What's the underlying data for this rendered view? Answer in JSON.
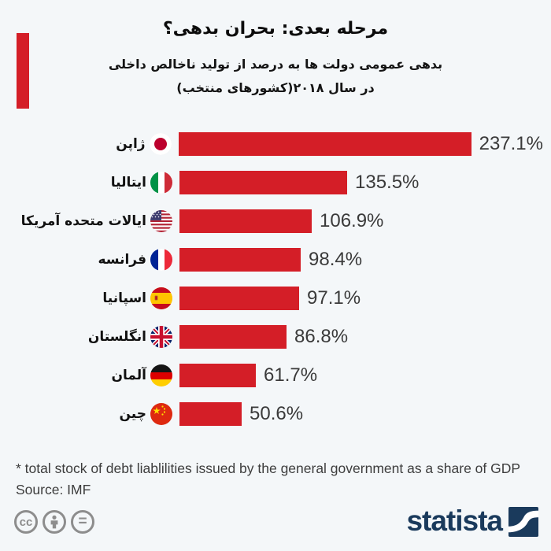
{
  "header": {
    "title": "مرحله بعدی: بحران بدهی؟",
    "subtitle_line1": "بدهی عمومی دولت ها به درصد از تولید ناخالص داخلی",
    "subtitle_line2": "در سال ۲۰۱۸(کشورهای منتخب)"
  },
  "chart_data": {
    "type": "bar",
    "orientation": "horizontal",
    "unit": "percent of GDP",
    "xlim": [
      0,
      250
    ],
    "bar_color": "#d41e27",
    "categories": [
      "ژاپن",
      "ایتالیا",
      "ایالات متحده آمریکا",
      "فرانسه",
      "اسپانیا",
      "انگلستان",
      "آلمان",
      "چین"
    ],
    "values": [
      237.1,
      135.5,
      106.9,
      98.4,
      97.1,
      86.8,
      61.7,
      50.6
    ],
    "rows": [
      {
        "label": "ژاپن",
        "value": 237.1,
        "display": "237.1%",
        "flag_icon": "japan-flag-icon"
      },
      {
        "label": "ایتالیا",
        "value": 135.5,
        "display": "135.5%",
        "flag_icon": "italy-flag-icon"
      },
      {
        "label": "ایالات متحده آمریکا",
        "value": 106.9,
        "display": "106.9%",
        "flag_icon": "usa-flag-icon"
      },
      {
        "label": "فرانسه",
        "value": 98.4,
        "display": "98.4%",
        "flag_icon": "france-flag-icon"
      },
      {
        "label": "اسپانیا",
        "value": 97.1,
        "display": "97.1%",
        "flag_icon": "spain-flag-icon"
      },
      {
        "label": "انگلستان",
        "value": 86.8,
        "display": "86.8%",
        "flag_icon": "uk-flag-icon"
      },
      {
        "label": "آلمان",
        "value": 61.7,
        "display": "61.7%",
        "flag_icon": "germany-flag-icon"
      },
      {
        "label": "چین",
        "value": 50.6,
        "display": "50.6%",
        "flag_icon": "china-flag-icon"
      }
    ]
  },
  "footer": {
    "note": "* total stock of debt liablilities issued by the general government as a share of GDP",
    "source": "Source: IMF"
  },
  "branding": {
    "logo_text": "statista",
    "cc_label": "cc",
    "nd_label": "="
  },
  "colors": {
    "background": "#f4f7f9",
    "bar_red": "#d41e27",
    "accent_red": "#d41e27",
    "navy": "#1a3a5c",
    "cc_gray": "#8d8d8d",
    "value_text": "#3a3a3a"
  }
}
